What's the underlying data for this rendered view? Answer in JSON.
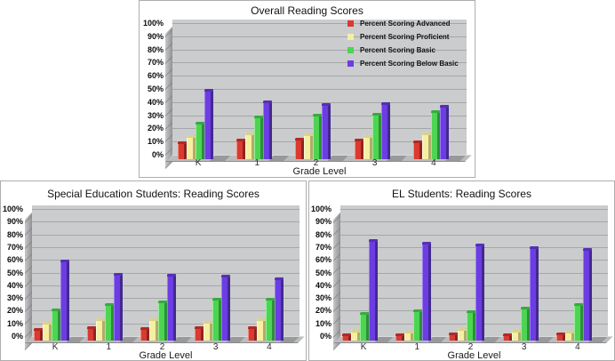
{
  "palette": {
    "advanced": {
      "light": "#f0907f",
      "main": "#da3a31",
      "dark": "#8e241f",
      "cap": "#b02a25"
    },
    "proficient": {
      "light": "#fdfbd8",
      "main": "#f5efa1",
      "dark": "#b3aa6d",
      "cap": "#d9d28a"
    },
    "basic": {
      "light": "#97ef97",
      "main": "#4dd453",
      "dark": "#2c9135",
      "cap": "#38a940"
    },
    "below_basic": {
      "light": "#9c7cf2",
      "main": "#6b3de2",
      "dark": "#43298e",
      "cap": "#5531b2"
    }
  },
  "axes": {
    "y_ticks": [
      "0%",
      "10%",
      "20%",
      "30%",
      "40%",
      "50%",
      "60%",
      "70%",
      "80%",
      "90%",
      "100%"
    ]
  },
  "chart_data": [
    {
      "type": "bar",
      "title": "Overall Reading Scores",
      "xlabel": "Grade Level",
      "ylim": [
        0,
        100
      ],
      "grid": true,
      "legend_visible": true,
      "legend_position": "top-right",
      "categories": [
        "K",
        "1",
        "2",
        "3",
        "4"
      ],
      "series": [
        {
          "name": "Percent Scoring Advanced",
          "palette": "advanced",
          "values": [
            10,
            12,
            13,
            12,
            11
          ]
        },
        {
          "name": "Percent Scoring Proficient",
          "palette": "proficient",
          "values": [
            15,
            17,
            16,
            15,
            17
          ]
        },
        {
          "name": "Percent Scoring Basic",
          "palette": "basic",
          "values": [
            25,
            30,
            31,
            32,
            34
          ]
        },
        {
          "name": "Percent Scoring Below Basic",
          "palette": "below_basic",
          "values": [
            50,
            41,
            39,
            40,
            38
          ]
        }
      ]
    },
    {
      "type": "bar",
      "title": "Special Education Students: Reading Scores",
      "xlabel": "Grade Level",
      "ylim": [
        0,
        100
      ],
      "grid": true,
      "legend_visible": false,
      "categories": [
        "K",
        "1",
        "2",
        "3",
        "4"
      ],
      "series": [
        {
          "name": "Percent Scoring Advanced",
          "palette": "advanced",
          "values": [
            6,
            8,
            7,
            8,
            8
          ]
        },
        {
          "name": "Percent Scoring Proficient",
          "palette": "proficient",
          "values": [
            11,
            14,
            14,
            12,
            14
          ]
        },
        {
          "name": "Percent Scoring Basic",
          "palette": "basic",
          "values": [
            22,
            26,
            28,
            30,
            30
          ]
        },
        {
          "name": "Percent Scoring Below Basic",
          "palette": "below_basic",
          "values": [
            60,
            50,
            49,
            48,
            46
          ]
        }
      ]
    },
    {
      "type": "bar",
      "title": "EL Students: Reading Scores",
      "xlabel": "Grade Level",
      "ylim": [
        0,
        100
      ],
      "grid": true,
      "legend_visible": false,
      "categories": [
        "K",
        "1",
        "2",
        "3",
        "4"
      ],
      "series": [
        {
          "name": "Percent Scoring Advanced",
          "palette": "advanced",
          "values": [
            2,
            2,
            3,
            2,
            3
          ]
        },
        {
          "name": "Percent Scoring Proficient",
          "palette": "proficient",
          "values": [
            5,
            4,
            6,
            5,
            4
          ]
        },
        {
          "name": "Percent Scoring Basic",
          "palette": "basic",
          "values": [
            19,
            21,
            20,
            23,
            26
          ]
        },
        {
          "name": "Percent Scoring Below Basic",
          "palette": "below_basic",
          "values": [
            76,
            74,
            73,
            71,
            69
          ]
        }
      ]
    }
  ]
}
